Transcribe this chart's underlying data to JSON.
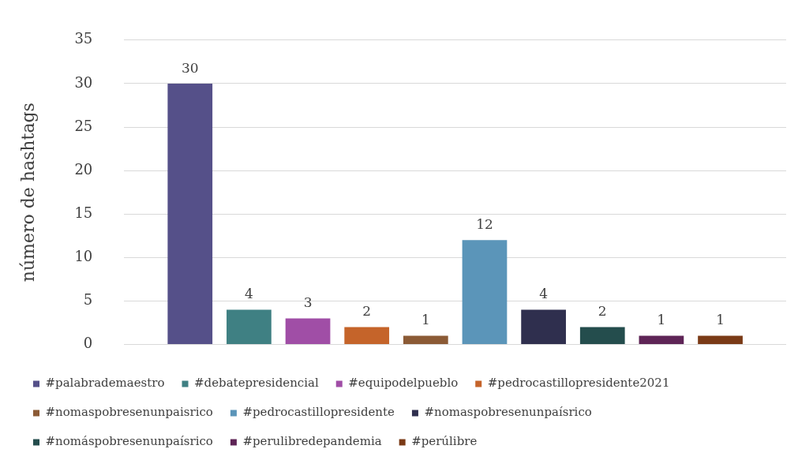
{
  "chart_data": {
    "type": "bar",
    "ylabel": "número de hashtags",
    "categories": [
      null
    ],
    "ylim": [
      0,
      35
    ],
    "yticks": [
      0,
      5,
      10,
      15,
      20,
      25,
      30,
      35
    ],
    "grid": "y",
    "legend": "bottom",
    "data_labels": true,
    "series": [
      {
        "name": "#palabrademaestro",
        "color": "#555089",
        "values": [
          30
        ]
      },
      {
        "name": "#debatepresidencial",
        "color": "#3f8083",
        "values": [
          4
        ]
      },
      {
        "name": "#equipodelpueblo",
        "color": "#a04ea6",
        "values": [
          3
        ]
      },
      {
        "name": "#pedrocastillopresidente2021",
        "color": "#c5642a",
        "values": [
          2
        ]
      },
      {
        "name": "#nomaspobresenunpaisrico",
        "color": "#8b5a35",
        "values": [
          1
        ]
      },
      {
        "name": "#pedrocastillopresidente",
        "color": "#5b95b9",
        "values": [
          12
        ]
      },
      {
        "name": "#nomaspobresenunpaísrico",
        "color": "#2f2f4e",
        "values": [
          4
        ]
      },
      {
        "name": "#nomáspobresenunpaísrico",
        "color": "#244d4d",
        "values": [
          2
        ]
      },
      {
        "name": "#perulibredepandemia",
        "color": "#5e2456",
        "values": [
          1
        ]
      },
      {
        "name": "#perúlibre",
        "color": "#7a3a16",
        "values": [
          1
        ]
      }
    ]
  }
}
